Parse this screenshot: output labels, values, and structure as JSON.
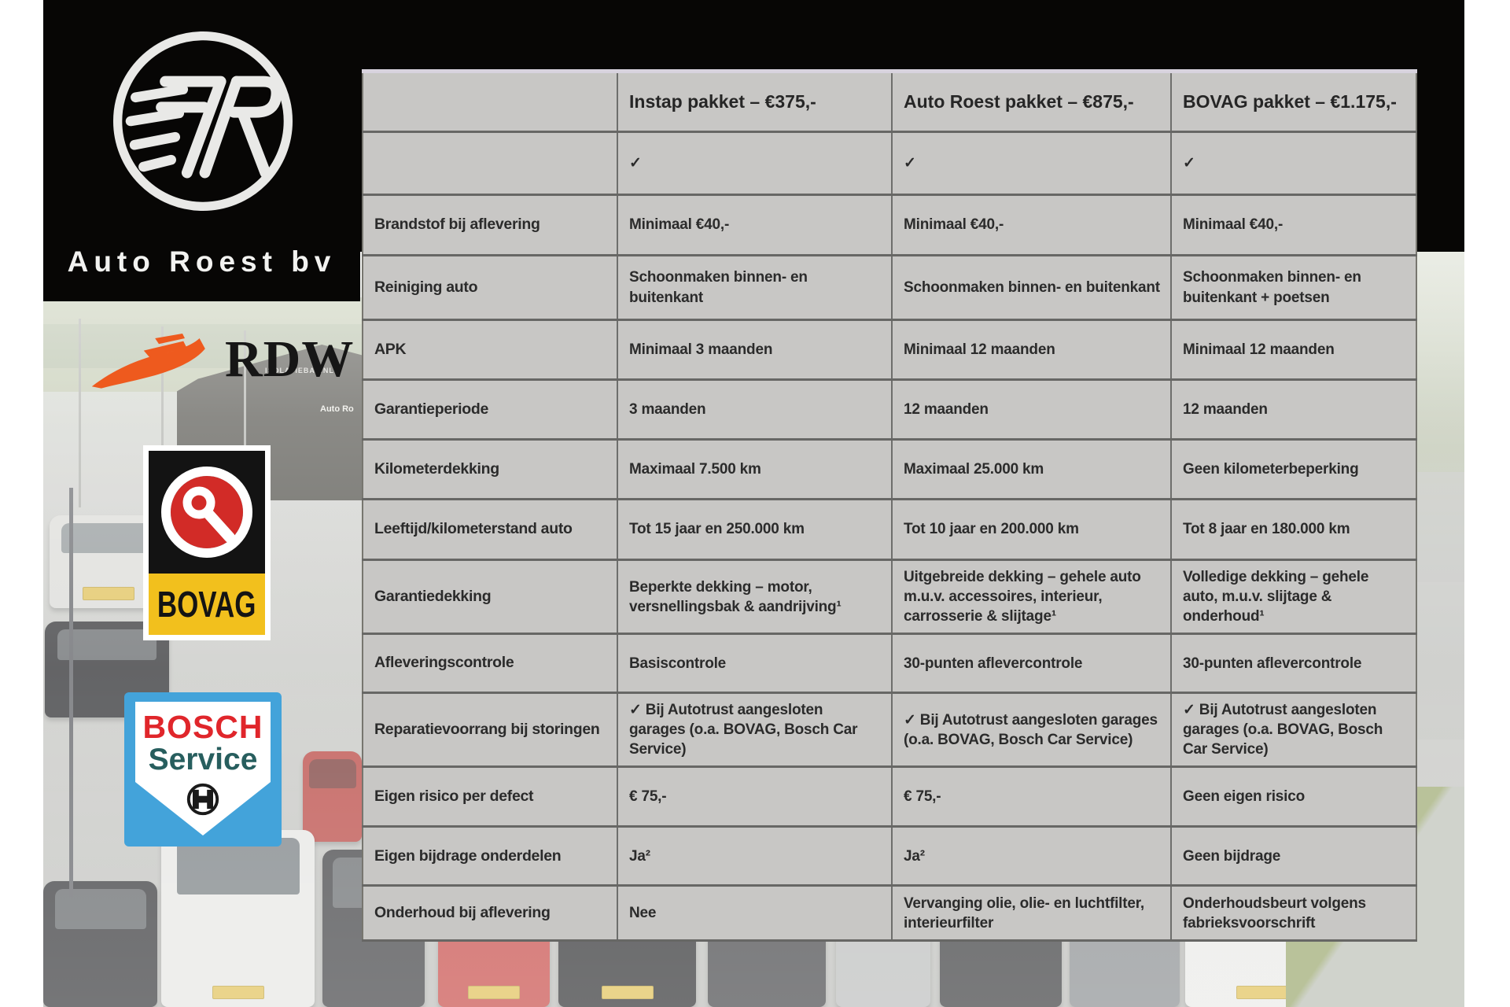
{
  "branding": {
    "company": "Auto Roest bv"
  },
  "logos": {
    "rdw": "RDW",
    "bovag": "BOVAG",
    "bosch_line1": "BOSCH",
    "bosch_line2": "Service"
  },
  "photo": {
    "building_sign": "Auto Ro",
    "building_sign2": "ISOLATIEBAL.NL"
  },
  "table": {
    "columns": [
      "",
      "Instap pakket – €375,-",
      "Auto Roest pakket – €875,-",
      "BOVAG pakket – €1.175,-"
    ],
    "rows": [
      {
        "label": "",
        "cells": [
          "✓",
          "✓",
          "✓"
        ]
      },
      {
        "label": "Brandstof bij aflevering",
        "cells": [
          "Minimaal €40,-",
          "Minimaal €40,-",
          "Minimaal €40,-"
        ]
      },
      {
        "label": "Reiniging auto",
        "cells": [
          "Schoonmaken binnen- en buitenkant",
          "Schoonmaken binnen- en buitenkant",
          "Schoonmaken binnen- en buitenkant + poetsen"
        ]
      },
      {
        "label": "APK",
        "cells": [
          "Minimaal 3 maanden",
          "Minimaal 12 maanden",
          "Minimaal 12 maanden"
        ]
      },
      {
        "label": "Garantieperiode",
        "cells": [
          "3 maanden",
          "12 maanden",
          "12 maanden"
        ]
      },
      {
        "label": "Kilometerdekking",
        "cells": [
          "Maximaal 7.500 km",
          "Maximaal 25.000 km",
          "Geen kilometerbeperking"
        ]
      },
      {
        "label": "Leeftijd/kilometerstand auto",
        "cells": [
          "Tot 15 jaar en 250.000 km",
          "Tot 10 jaar en 200.000 km",
          "Tot 8 jaar en 180.000 km"
        ]
      },
      {
        "label": "Garantiedekking",
        "cells": [
          "Beperkte dekking – motor, versnellingsbak & aandrijving¹",
          "Uitgebreide dekking – gehele auto m.u.v. accessoires, interieur, carrosserie & slijtage¹",
          "Volledige dekking – gehele auto, m.u.v. slijtage & onderhoud¹"
        ]
      },
      {
        "label": "Afleveringscontrole",
        "cells": [
          "Basiscontrole",
          "30-punten aflevercontrole",
          "30-punten aflevercontrole"
        ]
      },
      {
        "label": "Reparatievoorrang bij storingen",
        "cells": [
          "✓ Bij Autotrust aangesloten garages (o.a. BOVAG, Bosch Car Service)",
          "✓ Bij Autotrust aangesloten garages (o.a. BOVAG, Bosch Car Service)",
          "✓ Bij Autotrust aangesloten garages (o.a. BOVAG, Bosch Car Service)"
        ]
      },
      {
        "label": "Eigen risico per defect",
        "cells": [
          "€ 75,-",
          "€ 75,-",
          "Geen eigen risico"
        ]
      },
      {
        "label": "Eigen bijdrage onderdelen",
        "cells": [
          "Ja²",
          "Ja²",
          "Geen bijdrage"
        ]
      },
      {
        "label": "Onderhoud bij aflevering",
        "cells": [
          "Nee",
          "Vervanging olie, olie- en luchtfilter, interieurfilter",
          "Onderhoudsbeurt volgens fabrieksvoorschrift"
        ]
      }
    ]
  },
  "colors": {
    "rdw_orange": "#ee5a1e",
    "bovag_red": "#d22b27",
    "bovag_yellow": "#f2c01d",
    "bosch_blue": "#43a3da",
    "bosch_red": "#e0262b",
    "bosch_teal": "#275e5e",
    "table_bg": "#c8c7c5",
    "table_line": "#676765",
    "text": "#2b2b2b"
  }
}
